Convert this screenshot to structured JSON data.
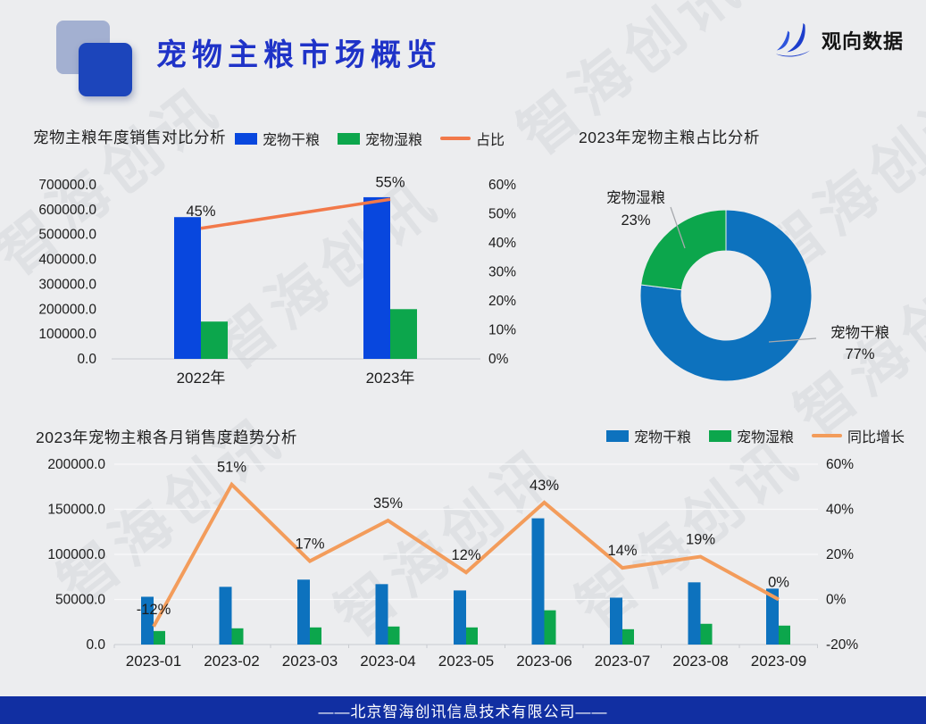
{
  "header": {
    "title": "宠物主粮市场概览",
    "brand": "观向数据"
  },
  "watermark": {
    "text": "智海创讯"
  },
  "footer": {
    "text": "——北京智海创讯信息技术有限公司——"
  },
  "colors": {
    "page_bg": "#ECEDEF",
    "title_blue": "#1F33C8",
    "bar_blue_royal": "#0847DE",
    "bar_blue": "#0D72BE",
    "bar_green": "#0CA64C",
    "line_orange": "#F2794A",
    "line_orange_light": "#F39C5B",
    "footer_bg": "#112FA2",
    "watermark_gray": "#D8DADE"
  },
  "chart_data": [
    {
      "id": "yearly-comparison",
      "type": "bar+line",
      "title": "宠物主粮年度销售对比分析",
      "categories": [
        "2022年",
        "2023年"
      ],
      "series": [
        {
          "name": "宠物干粮",
          "chart": "bar",
          "color": "#0847DE",
          "values": [
            570000,
            650000
          ]
        },
        {
          "name": "宠物湿粮",
          "chart": "bar",
          "color": "#0CA64C",
          "values": [
            150000,
            200000
          ]
        },
        {
          "name": "占比",
          "chart": "line",
          "axis": "right",
          "color": "#F2794A",
          "values": [
            45,
            55
          ],
          "point_labels": [
            "45%",
            "55%"
          ]
        }
      ],
      "left_axis": {
        "min": 0,
        "max": 700000,
        "tick_labels": [
          "700000.0",
          "600000.0",
          "500000.0",
          "400000.0",
          "300000.0",
          "200000.0",
          "100000.0",
          "0.0"
        ]
      },
      "right_axis": {
        "min": 0,
        "max": 60,
        "tick_labels": [
          "60%",
          "50%",
          "40%",
          "30%",
          "20%",
          "10%",
          "0%"
        ]
      },
      "grid": false,
      "legend_position": "top"
    },
    {
      "id": "share-2023",
      "type": "pie",
      "title": "2023年宠物主粮占比分析",
      "donut": true,
      "slices": [
        {
          "name": "宠物干粮",
          "pct": 77,
          "pct_label": "77%",
          "color": "#0D72BE"
        },
        {
          "name": "宠物湿粮",
          "pct": 23,
          "pct_label": "23%",
          "color": "#0CA64C"
        }
      ]
    },
    {
      "id": "monthly-trend",
      "type": "bar+line",
      "title": "2023年宠物主粮各月销售度趋势分析",
      "categories": [
        "2023-01",
        "2023-02",
        "2023-03",
        "2023-04",
        "2023-05",
        "2023-06",
        "2023-07",
        "2023-08",
        "2023-09"
      ],
      "series": [
        {
          "name": "宠物干粮",
          "chart": "bar",
          "color": "#0D72BE",
          "values": [
            53000,
            64000,
            72000,
            67000,
            60000,
            140000,
            52000,
            69000,
            62000
          ]
        },
        {
          "name": "宠物湿粮",
          "chart": "bar",
          "color": "#0CA64C",
          "values": [
            15000,
            18000,
            19000,
            20000,
            19000,
            38000,
            17000,
            23000,
            21000
          ]
        },
        {
          "name": "同比增长",
          "chart": "line",
          "axis": "right",
          "color": "#F39C5B",
          "values": [
            -12,
            51,
            17,
            35,
            12,
            43,
            14,
            19,
            0
          ],
          "point_labels": [
            "-12%",
            "51%",
            "17%",
            "35%",
            "12%",
            "43%",
            "14%",
            "19%",
            "0%"
          ]
        }
      ],
      "left_axis": {
        "min": 0,
        "max": 200000,
        "tick_labels": [
          "200000.0",
          "150000.0",
          "100000.0",
          "50000.0",
          "0.0"
        ]
      },
      "right_axis": {
        "min": -20,
        "max": 60,
        "tick_labels": [
          "60%",
          "40%",
          "20%",
          "0%",
          "-20%"
        ]
      },
      "grid": true,
      "legend_position": "top-right"
    }
  ]
}
